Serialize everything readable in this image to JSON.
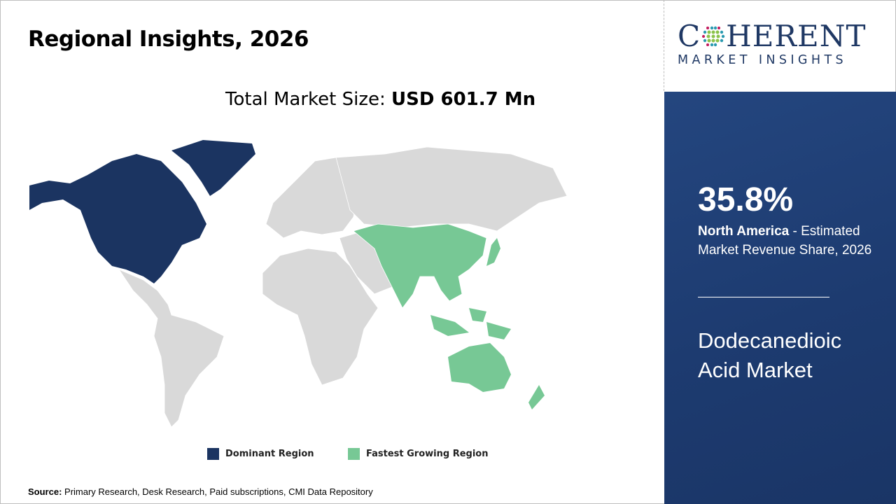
{
  "header": {
    "title": "Regional Insights, 2026"
  },
  "total_market": {
    "label": "Total Market Size: ",
    "value": "USD 601.7 Mn"
  },
  "logo": {
    "main_left": "C",
    "main_right": "HERENT",
    "sub": "MARKET INSIGHTS"
  },
  "highlight": {
    "percent": "35.8%",
    "region": "North America",
    "description": " - Estimated Market Revenue Share, 2026",
    "market_name": "Dodecanedioic Acid Market"
  },
  "legend": [
    {
      "label": "Dominant Region",
      "color": "#1b3461"
    },
    {
      "label": "Fastest Growing Region",
      "color": "#77c895"
    }
  ],
  "map_colors": {
    "dominant": "#1b3461",
    "fastest": "#77c895",
    "other": "#d9d9d9"
  },
  "source": {
    "label": "Source:",
    "text": " Primary Research, Desk Research, Paid subscriptions, CMI Data Repository"
  }
}
